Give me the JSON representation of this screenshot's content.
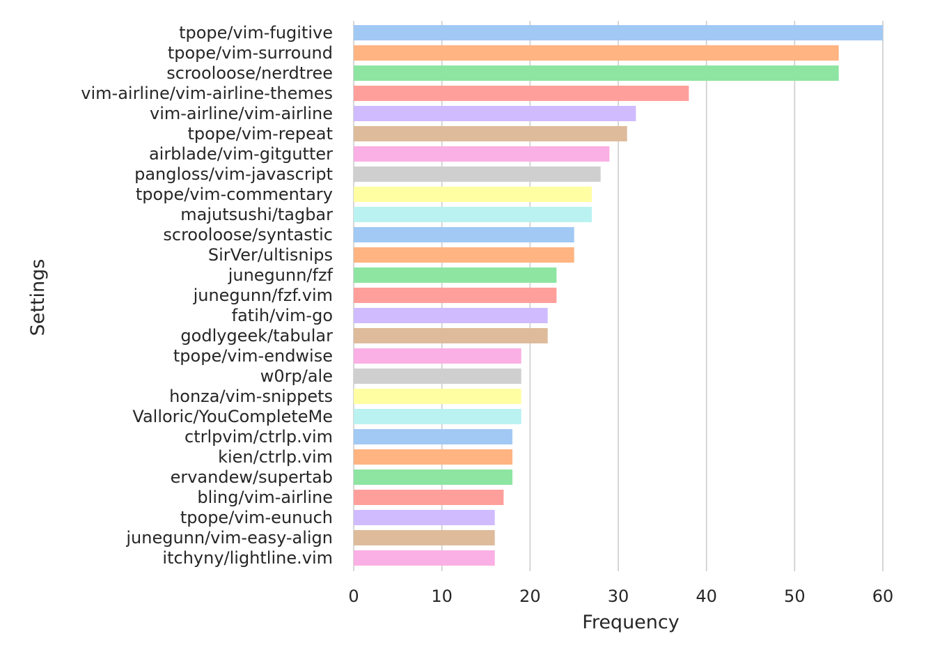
{
  "chart_data": {
    "type": "bar",
    "orientation": "horizontal",
    "xlabel": "Frequency",
    "ylabel": "Settings",
    "xlim": [
      0,
      60
    ],
    "xticks": [
      0,
      10,
      20,
      30,
      40,
      50,
      60
    ],
    "grid": "vertical",
    "categories": [
      "tpope/vim-fugitive",
      "tpope/vim-surround",
      "scrooloose/nerdtree",
      "vim-airline/vim-airline-themes",
      "vim-airline/vim-airline",
      "tpope/vim-repeat",
      "airblade/vim-gitgutter",
      "pangloss/vim-javascript",
      "tpope/vim-commentary",
      "majutsushi/tagbar",
      "scrooloose/syntastic",
      "SirVer/ultisnips",
      "junegunn/fzf",
      "junegunn/fzf.vim",
      "fatih/vim-go",
      "godlygeek/tabular",
      "tpope/vim-endwise",
      "w0rp/ale",
      "honza/vim-snippets",
      "Valloric/YouCompleteMe",
      "ctrlpvim/ctrlp.vim",
      "kien/ctrlp.vim",
      "ervandew/supertab",
      "bling/vim-airline",
      "tpope/vim-eunuch",
      "junegunn/vim-easy-align",
      "itchyny/lightline.vim"
    ],
    "values": [
      60,
      55,
      55,
      38,
      32,
      31,
      29,
      28,
      27,
      27,
      25,
      25,
      23,
      23,
      22,
      22,
      19,
      19,
      19,
      19,
      18,
      18,
      18,
      17,
      16,
      16,
      16
    ],
    "palette": [
      "#a1c9f4",
      "#ffb482",
      "#8de5a1",
      "#ff9f9b",
      "#d0bbff",
      "#debb9b",
      "#fab0e4",
      "#cfcfcf",
      "#fffea3",
      "#b9f2f0"
    ]
  }
}
